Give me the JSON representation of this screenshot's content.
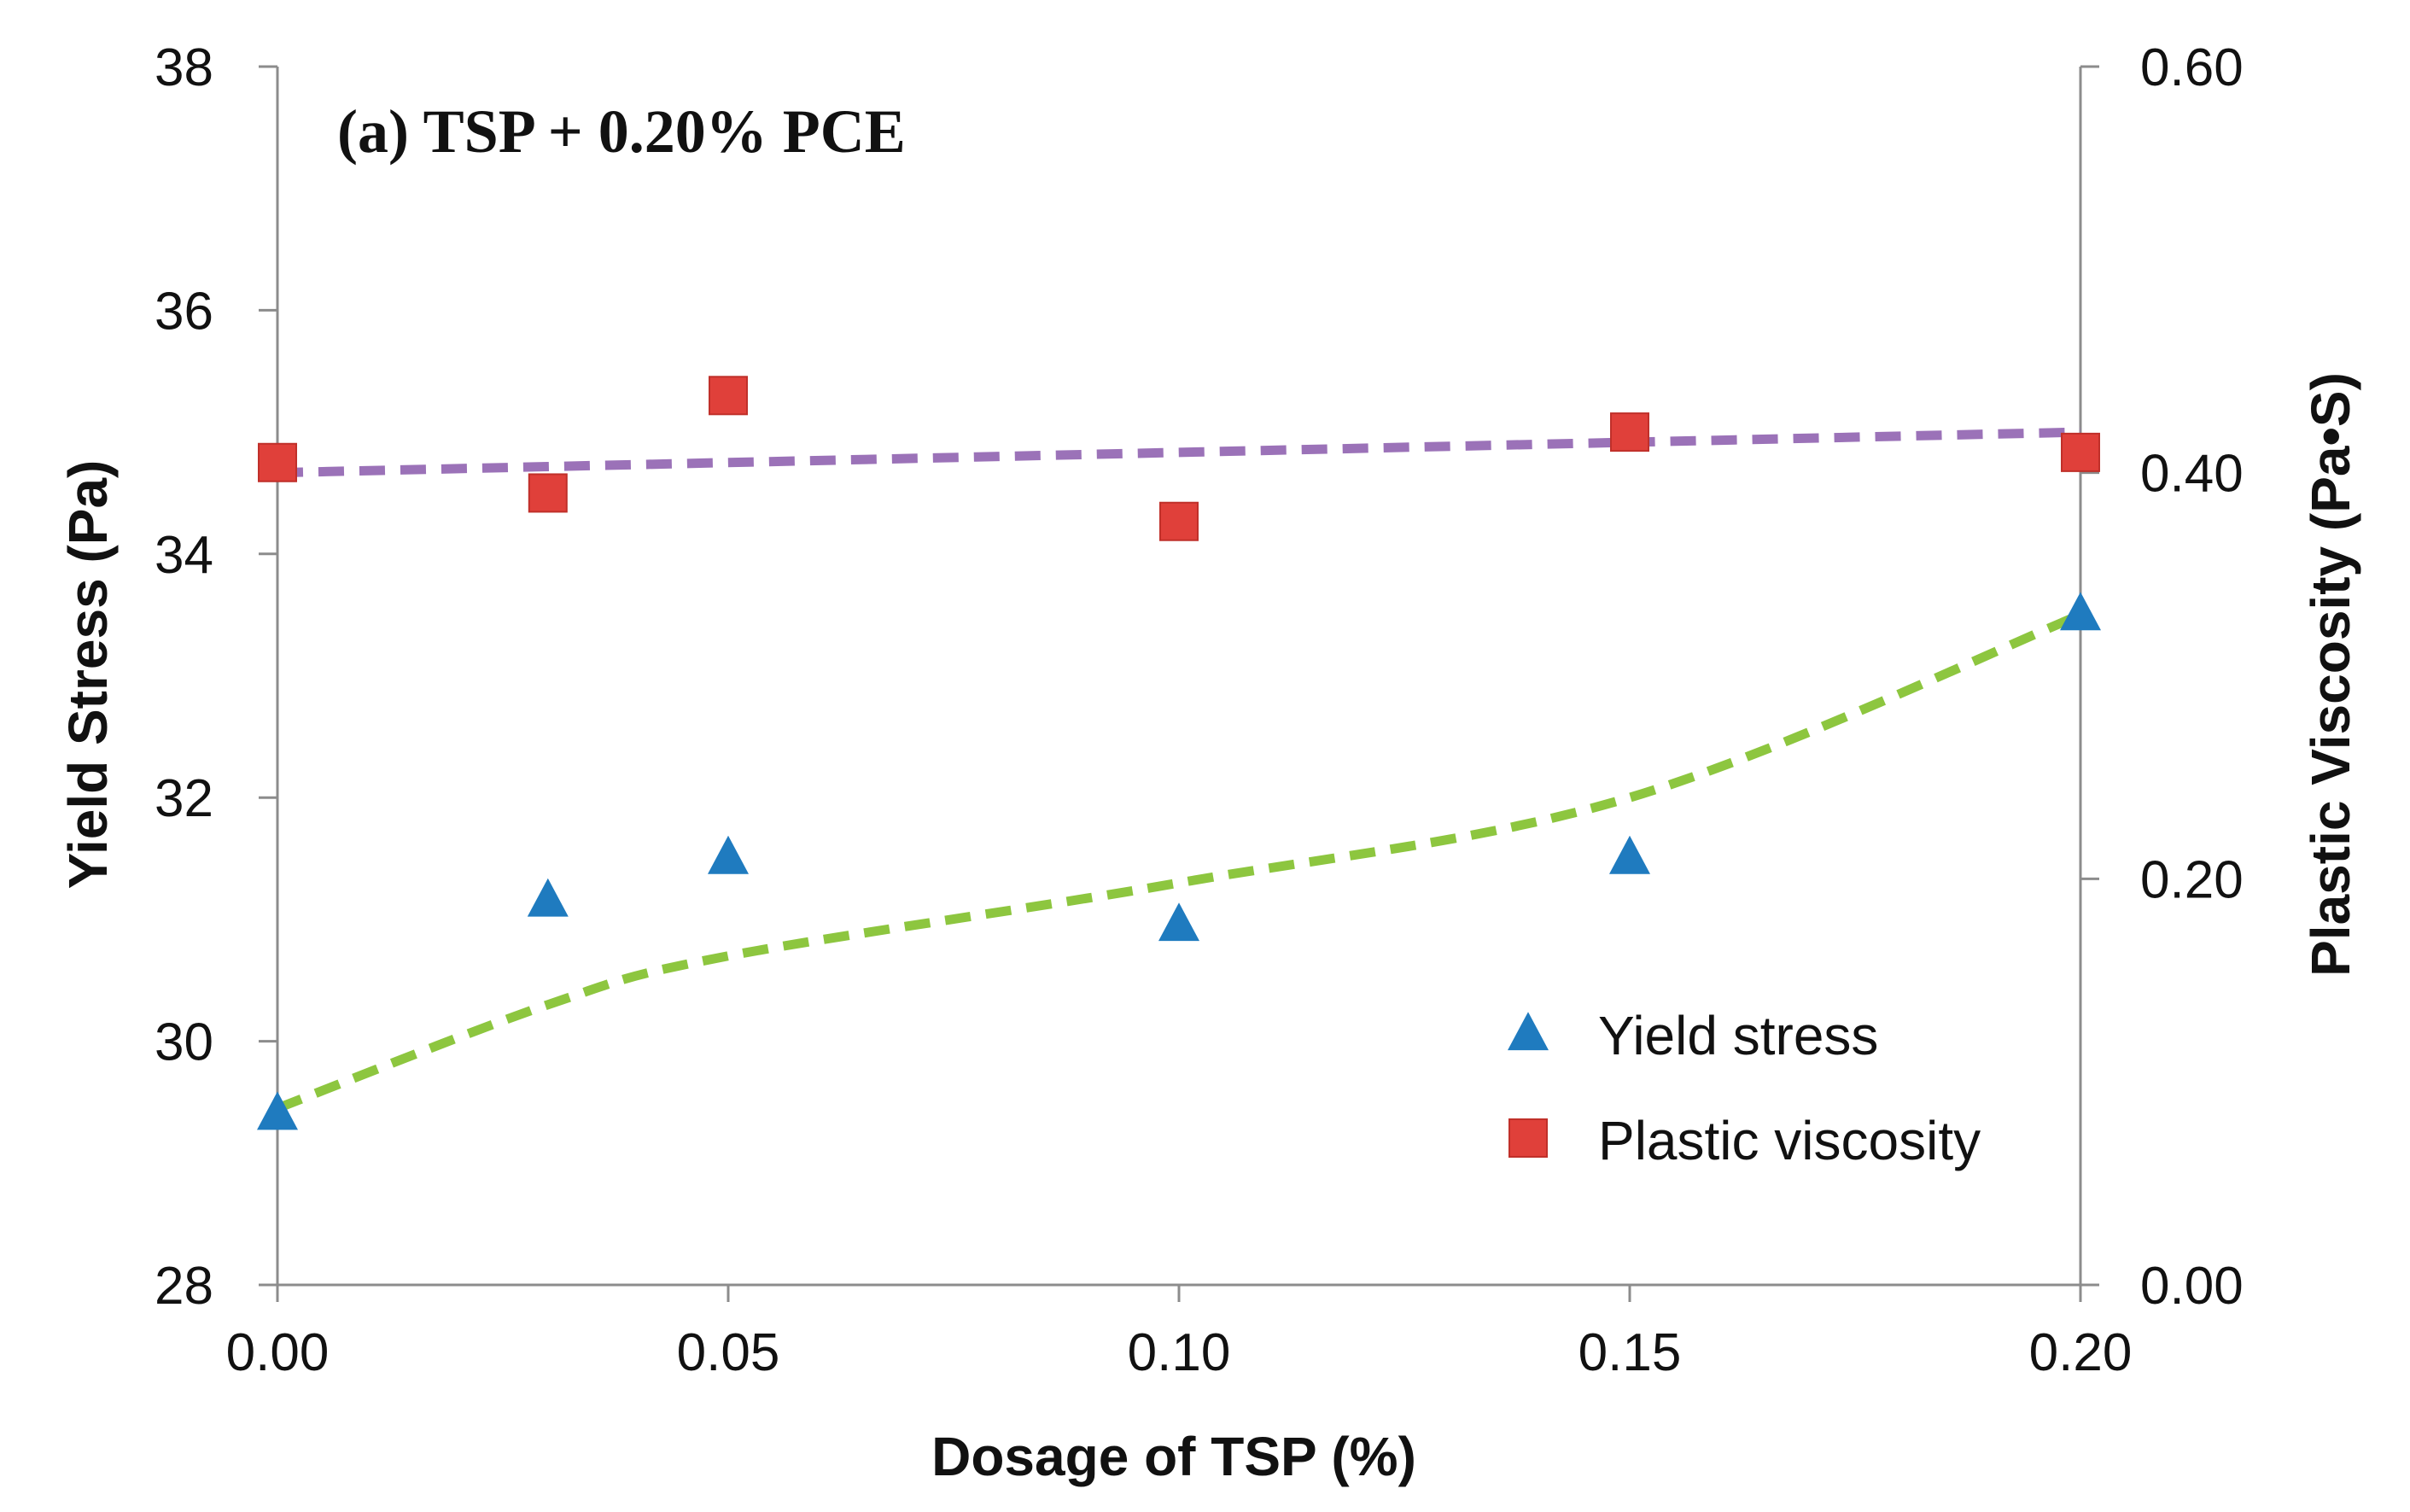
{
  "chart_data": {
    "type": "scatter",
    "title": "(a) TSP + 0.20% PCE",
    "xlabel": "Dosage of TSP (%)",
    "ylabel": "Yield Stress (Pa)",
    "y2label": "Plastic Viscosity (Pa•S)",
    "xlim": [
      0,
      0.2
    ],
    "ylim": [
      28,
      38
    ],
    "y2lim": [
      0,
      0.6
    ],
    "x_ticks": [
      "0.00",
      "0.05",
      "0.10",
      "0.15",
      "0.20"
    ],
    "y_ticks": [
      "28",
      "30",
      "32",
      "34",
      "36",
      "38"
    ],
    "y2_ticks": [
      "0.00",
      "0.20",
      "0.40",
      "0.60"
    ],
    "legend_position": "lower-right",
    "series": [
      {
        "name": "Yield stress",
        "axis": "left",
        "marker": "triangle",
        "color": "#1f7bbf",
        "x": [
          0,
          0.03,
          0.05,
          0.1,
          0.15,
          0.2
        ],
        "values": [
          29.4,
          31.15,
          31.5,
          30.95,
          31.5,
          33.5
        ]
      },
      {
        "name": "Plastic viscosity",
        "axis": "right",
        "marker": "square",
        "color": "#e0403a",
        "x": [
          0,
          0.03,
          0.05,
          0.1,
          0.15,
          0.2
        ],
        "values": [
          0.405,
          0.39,
          0.438,
          0.376,
          0.42,
          0.41
        ]
      }
    ],
    "trendlines": [
      {
        "for": "Yield stress",
        "axis": "left",
        "color": "#8dc63f",
        "style": "dashed",
        "x": [
          0,
          0.03,
          0.05,
          0.1,
          0.15,
          0.2
        ],
        "values": [
          29.45,
          30.3,
          30.7,
          31.3,
          32.0,
          33.5
        ]
      },
      {
        "for": "Plastic viscosity",
        "axis": "right",
        "color": "#9b72b8",
        "style": "dashed",
        "x": [
          0,
          0.2
        ],
        "values": [
          0.4,
          0.42
        ]
      }
    ]
  }
}
